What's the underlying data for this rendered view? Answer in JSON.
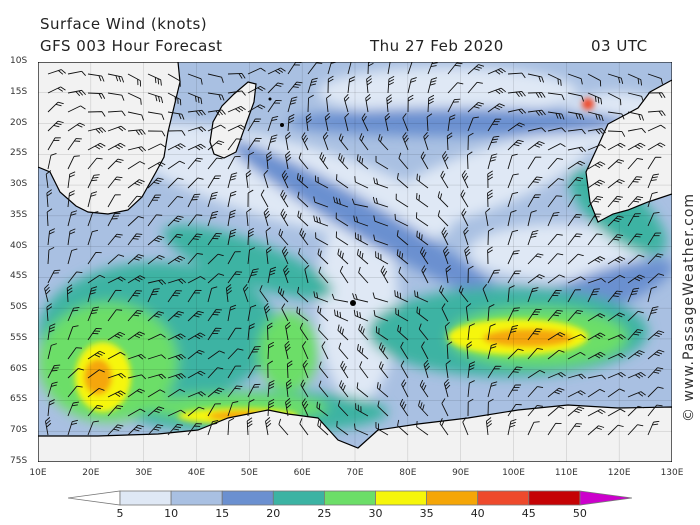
{
  "header": {
    "line1": "Surface Wind (knots)",
    "line2": "GFS 003 Hour Forecast",
    "date": "Thu 27 Feb 2020",
    "time": "03 UTC"
  },
  "credit": "© www.PassageWeather.com",
  "map": {
    "region": "Southern Indian Ocean",
    "lon_range": [
      10,
      130
    ],
    "lat_range": [
      -75,
      -10
    ],
    "lat_labels": [
      "10S",
      "15S",
      "20S",
      "25S",
      "30S",
      "35S",
      "40S",
      "45S",
      "50S",
      "55S",
      "60S",
      "65S",
      "70S",
      "75S"
    ],
    "lon_labels": [
      "10E",
      "20E",
      "30E",
      "40E",
      "50E",
      "60E",
      "70E",
      "80E",
      "90E",
      "100E",
      "110E",
      "120E",
      "130E"
    ],
    "land_color": "#f2f2f2",
    "barb_color": "#111111"
  },
  "legend": {
    "ticks": [
      "5",
      "10",
      "15",
      "20",
      "25",
      "30",
      "35",
      "40",
      "45",
      "50"
    ],
    "colors": [
      "#ffffff",
      "#dfe8f5",
      "#a9c0e2",
      "#6b90d0",
      "#3cb3a3",
      "#6cde68",
      "#f6f60a",
      "#f5a607",
      "#ee4a2c",
      "#c50305",
      "#cc00cc"
    ]
  }
}
